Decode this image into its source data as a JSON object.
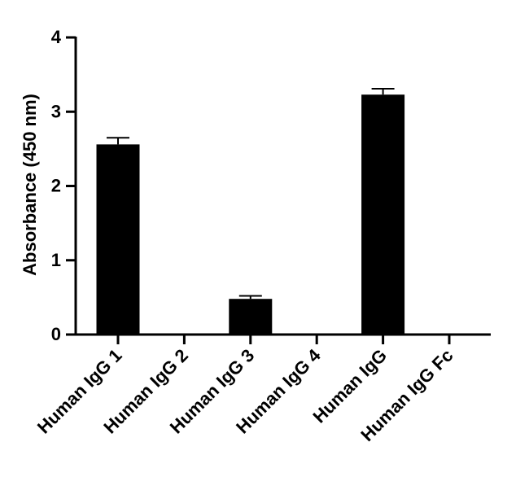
{
  "chart_data": {
    "type": "bar",
    "categories": [
      "Human IgG 1",
      "Human IgG 2",
      "Human IgG 3",
      "Human IgG 4",
      "Human IgG",
      "Human IgG Fc"
    ],
    "values": [
      2.56,
      0.01,
      0.48,
      0.01,
      3.23,
      0.0
    ],
    "errors": [
      0.09,
      0.0,
      0.04,
      0.0,
      0.08,
      0.0
    ],
    "ylabel": "Absorbance (450 nm)",
    "xlabel": "",
    "ylim": [
      0,
      4
    ],
    "yticks": [
      "0",
      "1",
      "2",
      "3",
      "4"
    ],
    "grid": false,
    "bar_color": "#000000"
  }
}
